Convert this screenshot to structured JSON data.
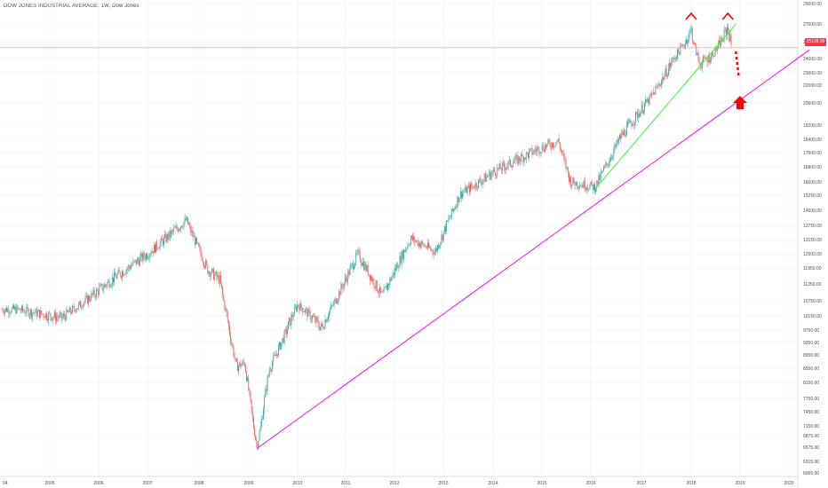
{
  "header": {
    "title": "DOW JONES INDUSTRIAL AVERAGE, 1W, Dow Jones"
  },
  "colors": {
    "up": "#26a69a",
    "down": "#ef5350",
    "trend_green": "#33ff33",
    "trend_magenta": "#ff00ff",
    "annotation_red": "#ff0000",
    "price_line": "#f4aaaa",
    "axis_text": "#4a4a4a",
    "grid": "#eef0f3"
  },
  "chart_data": {
    "type": "candlestick",
    "title": "DOW JONES INDUSTRIAL AVERAGE, 1W, Dow Jones",
    "x_ticks": [
      "04",
      "2005",
      "2006",
      "2007",
      "2008",
      "2009",
      "2010",
      "2011",
      "2012",
      "2013",
      "2014",
      "2015",
      "2016",
      "2017",
      "2018",
      "2019",
      "2020"
    ],
    "y_ticks": [
      29000,
      27000,
      25800,
      24000,
      23000,
      22000,
      20600,
      19200,
      18400,
      17600,
      16800,
      16000,
      15250,
      14500,
      13750,
      13150,
      12500,
      11950,
      11350,
      10750,
      10150,
      9750,
      9350,
      8950,
      8550,
      8150,
      7750,
      7450,
      7150,
      6875,
      6575,
      6315,
      6065
    ],
    "y_tick_labels": [
      "29000.00",
      "27000.00",
      "25800.00",
      "24000.00",
      "23000.00",
      "22000.00",
      "20600.00",
      "19200.00",
      "18400.00",
      "17600.00",
      "16800.00",
      "16000.00",
      "15250.00",
      "14500.00",
      "13750.00",
      "13150.00",
      "12500.00",
      "11950.00",
      "11350.00",
      "10750.00",
      "10150.00",
      "9750.00",
      "9350.00",
      "8950.00",
      "8550.00",
      "8150.00",
      "7750.00",
      "7450.00",
      "7150.00",
      "6875.00",
      "6575.00",
      "6315.00",
      "6065.00"
    ],
    "ylim": [
      6065,
      29000
    ],
    "scale": "log",
    "last_price": 25138.99,
    "last_price_label": "25138.99",
    "key_points": [
      {
        "date": "2004-09",
        "close": 10400
      },
      {
        "date": "2005-04",
        "close": 10100
      },
      {
        "date": "2006-05",
        "close": 11600
      },
      {
        "date": "2007-01",
        "close": 12500
      },
      {
        "date": "2007-10",
        "close": 14000
      },
      {
        "date": "2008-03",
        "close": 11900
      },
      {
        "date": "2008-06",
        "close": 11500
      },
      {
        "date": "2008-10",
        "close": 8600
      },
      {
        "date": "2008-12",
        "close": 8700
      },
      {
        "date": "2009-03",
        "close": 6600
      },
      {
        "date": "2009-06",
        "close": 8500
      },
      {
        "date": "2010-01",
        "close": 10600
      },
      {
        "date": "2010-07",
        "close": 9800
      },
      {
        "date": "2011-04",
        "close": 12500
      },
      {
        "date": "2011-10",
        "close": 10900
      },
      {
        "date": "2012-05",
        "close": 13200
      },
      {
        "date": "2012-11",
        "close": 12600
      },
      {
        "date": "2013-05",
        "close": 15300
      },
      {
        "date": "2014-01",
        "close": 16500
      },
      {
        "date": "2014-12",
        "close": 17800
      },
      {
        "date": "2015-05",
        "close": 18300
      },
      {
        "date": "2015-08",
        "close": 16000
      },
      {
        "date": "2016-02",
        "close": 15700
      },
      {
        "date": "2016-08",
        "close": 18500
      },
      {
        "date": "2017-03",
        "close": 20900
      },
      {
        "date": "2018-01",
        "close": 26600
      },
      {
        "date": "2018-03",
        "close": 23600
      },
      {
        "date": "2018-06",
        "close": 24300
      },
      {
        "date": "2018-10",
        "close": 26800
      },
      {
        "date": "2018-11",
        "close": 25139
      }
    ],
    "trendlines": [
      {
        "color": "green",
        "from": {
          "date": "2016-02",
          "value": 15600
        },
        "to": {
          "date": "2018-12",
          "value": 27000
        }
      },
      {
        "color": "magenta",
        "from": {
          "date": "2009-03",
          "value": 6550
        },
        "to": {
          "date": "2020-06",
          "value": 24900
        }
      }
    ],
    "annotations": [
      {
        "type": "caret",
        "date": "2018-01"
      },
      {
        "type": "caret",
        "date": "2018-10"
      },
      {
        "type": "dotted-arrow-down",
        "date": "2018-12"
      },
      {
        "type": "arrow-up",
        "date": "2019-01"
      }
    ],
    "grid": true,
    "legend": "none"
  }
}
